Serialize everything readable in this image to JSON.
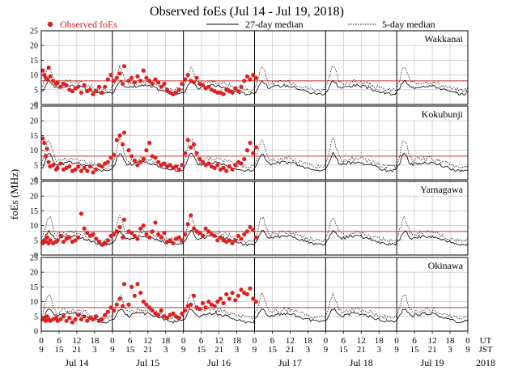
{
  "chart_data": {
    "type": "scatter",
    "title": "Observed foEs (Jul 14 - Jul 19, 2018)",
    "ylabel": "foEs (MHz)",
    "ylim": [
      0,
      25
    ],
    "yticks": [
      0,
      5,
      10,
      15,
      20,
      25
    ],
    "xlim_hours": [
      0,
      144
    ],
    "reference_line_mhz": 8,
    "legend": {
      "observed": "Observed foEs",
      "median27": "27-day median",
      "median5": "5-day median",
      "position": "top"
    },
    "ut_ticks": [
      "0",
      "6",
      "12",
      "18",
      "0",
      "6",
      "12",
      "18",
      "0",
      "6",
      "12",
      "18",
      "0",
      "6",
      "12",
      "18",
      "0",
      "6",
      "12",
      "18",
      "0",
      "6",
      "12",
      "18",
      "0"
    ],
    "jst_ticks": [
      "9",
      "15",
      "21",
      "3",
      "9",
      "15",
      "21",
      "3",
      "9",
      "15",
      "21",
      "3",
      "9",
      "15",
      "21",
      "3",
      "9",
      "15",
      "21",
      "3",
      "9",
      "15",
      "21",
      "3",
      "9"
    ],
    "ut_label": "UT",
    "jst_label": "JST",
    "days": [
      "Jul 14",
      "Jul 15",
      "Jul 16",
      "Jul 17",
      "Jul 18",
      "Jul 19"
    ],
    "year": "2018",
    "colors": {
      "observed": "#e02020",
      "reference": "#c83232",
      "median": "#000000",
      "grid": "#bbbbbb"
    },
    "stations": [
      {
        "name": "Wakkanai",
        "observed_until_hour": 73,
        "observed": [
          [
            0.5,
            11.5
          ],
          [
            1,
            10
          ],
          [
            1.5,
            9
          ],
          [
            2,
            8.5
          ],
          [
            2.5,
            12.5
          ],
          [
            3,
            9.5
          ],
          [
            4,
            8
          ],
          [
            5,
            7
          ],
          [
            5.5,
            7.5
          ],
          [
            6.5,
            6
          ],
          [
            7.5,
            7
          ],
          [
            8.5,
            6.5
          ],
          [
            9.5,
            5
          ],
          [
            10.5,
            4.5
          ],
          [
            11.5,
            5.5
          ],
          [
            12.5,
            6
          ],
          [
            13.5,
            4
          ],
          [
            14.5,
            6.5
          ],
          [
            15.5,
            4.5
          ],
          [
            16.5,
            5
          ],
          [
            17.5,
            3.5
          ],
          [
            18.5,
            4.5
          ],
          [
            19.5,
            6
          ],
          [
            20.5,
            4
          ],
          [
            21.5,
            6
          ],
          [
            22.5,
            8.5
          ],
          [
            23.5,
            10
          ],
          [
            24.5,
            8
          ],
          [
            25.5,
            9
          ],
          [
            26.5,
            10.5
          ],
          [
            27.5,
            7
          ],
          [
            28,
            13
          ],
          [
            29.5,
            8
          ],
          [
            30.5,
            9
          ],
          [
            31.5,
            7.5
          ],
          [
            32.5,
            9.5
          ],
          [
            33.5,
            8
          ],
          [
            34.5,
            11.5
          ],
          [
            35.5,
            9
          ],
          [
            36.5,
            8
          ],
          [
            37.5,
            7
          ],
          [
            38.5,
            8.5
          ],
          [
            39.5,
            7.5
          ],
          [
            40.5,
            6
          ],
          [
            41.5,
            7
          ],
          [
            42.5,
            5
          ],
          [
            43.5,
            4
          ],
          [
            44.5,
            3.5
          ],
          [
            45.5,
            4
          ],
          [
            46.5,
            5
          ],
          [
            47.5,
            7
          ],
          [
            48.5,
            8.5
          ],
          [
            49.5,
            10
          ],
          [
            50.5,
            8
          ],
          [
            51.5,
            7.5
          ],
          [
            52.5,
            9
          ],
          [
            53.5,
            7
          ],
          [
            54.5,
            6.5
          ],
          [
            55.5,
            5.5
          ],
          [
            56.5,
            6
          ],
          [
            57.5,
            5
          ],
          [
            58.5,
            4.5
          ],
          [
            59.5,
            4
          ],
          [
            60.5,
            4
          ],
          [
            61.5,
            3.5
          ],
          [
            62.5,
            5
          ],
          [
            63.5,
            4.5
          ],
          [
            64.5,
            4
          ],
          [
            65.5,
            5.5
          ],
          [
            66.5,
            4.5
          ],
          [
            67.5,
            6
          ],
          [
            68.5,
            8
          ],
          [
            69.5,
            9.5
          ],
          [
            70.5,
            8.5
          ],
          [
            71.5,
            10
          ],
          [
            72.5,
            9
          ]
        ]
      },
      {
        "name": "Kokubunji",
        "observed_until_hour": 73,
        "observed": [
          [
            0.5,
            14
          ],
          [
            1,
            12.5
          ],
          [
            1.5,
            8
          ],
          [
            2,
            10.5
          ],
          [
            2.5,
            6
          ],
          [
            3,
            4.5
          ],
          [
            4,
            5
          ],
          [
            5,
            3.5
          ],
          [
            5.5,
            4
          ],
          [
            6.5,
            5.5
          ],
          [
            7.5,
            3.5
          ],
          [
            8.5,
            4
          ],
          [
            9.5,
            4.5
          ],
          [
            10.5,
            3
          ],
          [
            11.5,
            3.5
          ],
          [
            12.5,
            4.5
          ],
          [
            13.5,
            3
          ],
          [
            14.5,
            4
          ],
          [
            15.5,
            3
          ],
          [
            16.5,
            4.5
          ],
          [
            17.5,
            2.5
          ],
          [
            18.5,
            3.5
          ],
          [
            19.5,
            5
          ],
          [
            20.5,
            4.5
          ],
          [
            21.5,
            5.5
          ],
          [
            22.5,
            6
          ],
          [
            23.5,
            7.5
          ],
          [
            24.5,
            8.5
          ],
          [
            25.5,
            13.5
          ],
          [
            26.5,
            15
          ],
          [
            27.5,
            12
          ],
          [
            28,
            16
          ],
          [
            29.5,
            10
          ],
          [
            30.5,
            8
          ],
          [
            31.5,
            6.5
          ],
          [
            32.5,
            5
          ],
          [
            33.5,
            6
          ],
          [
            34.5,
            7
          ],
          [
            35.5,
            10
          ],
          [
            36.5,
            12.5
          ],
          [
            37.5,
            8
          ],
          [
            38.5,
            7.5
          ],
          [
            39.5,
            6
          ],
          [
            40.5,
            5
          ],
          [
            41.5,
            5.5
          ],
          [
            42.5,
            4.5
          ],
          [
            43.5,
            5
          ],
          [
            44.5,
            4
          ],
          [
            45.5,
            4.5
          ],
          [
            46.5,
            3.5
          ],
          [
            47.5,
            5
          ],
          [
            48.5,
            9
          ],
          [
            49.5,
            13.5
          ],
          [
            50.5,
            11
          ],
          [
            51.5,
            12
          ],
          [
            52.5,
            9
          ],
          [
            53.5,
            7
          ],
          [
            54.5,
            6
          ],
          [
            55.5,
            5
          ],
          [
            56.5,
            5.5
          ],
          [
            57.5,
            4.5
          ],
          [
            58.5,
            4
          ],
          [
            59.5,
            5
          ],
          [
            60.5,
            3.5
          ],
          [
            61.5,
            4
          ],
          [
            62.5,
            3
          ],
          [
            63.5,
            4.5
          ],
          [
            64.5,
            3.5
          ],
          [
            65.5,
            5
          ],
          [
            66.5,
            6
          ],
          [
            67.5,
            5.5
          ],
          [
            68.5,
            7
          ],
          [
            69.5,
            10
          ],
          [
            70.5,
            12.5
          ],
          [
            71.5,
            9
          ],
          [
            72.5,
            11
          ]
        ]
      },
      {
        "name": "Yamagawa",
        "observed_until_hour": 73,
        "observed": [
          [
            0.5,
            4
          ],
          [
            1,
            5
          ],
          [
            1.5,
            4.5
          ],
          [
            2,
            6
          ],
          [
            2.5,
            4
          ],
          [
            3,
            5
          ],
          [
            4,
            4
          ],
          [
            5,
            4.5
          ],
          [
            5.5,
            5
          ],
          [
            6.5,
            6.5
          ],
          [
            7.5,
            4.5
          ],
          [
            8.5,
            5.5
          ],
          [
            9.5,
            6
          ],
          [
            10.5,
            4.5
          ],
          [
            11.5,
            5
          ],
          [
            12.5,
            6
          ],
          [
            13.5,
            14
          ],
          [
            14.5,
            9
          ],
          [
            15.5,
            7.5
          ],
          [
            16.5,
            6.5
          ],
          [
            17.5,
            7
          ],
          [
            18.5,
            5.5
          ],
          [
            19.5,
            4.5
          ],
          [
            20.5,
            3.5
          ],
          [
            21.5,
            4
          ],
          [
            22.5,
            5
          ],
          [
            23.5,
            6.5
          ],
          [
            24.5,
            7
          ],
          [
            25.5,
            8
          ],
          [
            26.5,
            9.5
          ],
          [
            27.5,
            6
          ],
          [
            28,
            12
          ],
          [
            29.5,
            8
          ],
          [
            30.5,
            7.5
          ],
          [
            31.5,
            6.5
          ],
          [
            32.5,
            5.5
          ],
          [
            33.5,
            9
          ],
          [
            34.5,
            10
          ],
          [
            35.5,
            7
          ],
          [
            36.5,
            6
          ],
          [
            37.5,
            8
          ],
          [
            38.5,
            11
          ],
          [
            39.5,
            7
          ],
          [
            40.5,
            6
          ],
          [
            41.5,
            7.5
          ],
          [
            42.5,
            4.5
          ],
          [
            43.5,
            5
          ],
          [
            44.5,
            4
          ],
          [
            45.5,
            5.5
          ],
          [
            46.5,
            6
          ],
          [
            47.5,
            5
          ],
          [
            48.5,
            7
          ],
          [
            49.5,
            10.5
          ],
          [
            50.5,
            13.5
          ],
          [
            51.5,
            9
          ],
          [
            52.5,
            8
          ],
          [
            53.5,
            7.5
          ],
          [
            54.5,
            6.5
          ],
          [
            55.5,
            9
          ],
          [
            56.5,
            8
          ],
          [
            57.5,
            7
          ],
          [
            58.5,
            6.5
          ],
          [
            59.5,
            5
          ],
          [
            60.5,
            6
          ],
          [
            61.5,
            5
          ],
          [
            62.5,
            4.5
          ],
          [
            63.5,
            5
          ],
          [
            64.5,
            4
          ],
          [
            65.5,
            5
          ],
          [
            66.5,
            6.5
          ],
          [
            67.5,
            5.5
          ],
          [
            68.5,
            7
          ],
          [
            69.5,
            8
          ],
          [
            70.5,
            9.5
          ],
          [
            71.5,
            8.5
          ],
          [
            72.5,
            6
          ]
        ]
      },
      {
        "name": "Okinawa",
        "observed_until_hour": 73,
        "observed": [
          [
            0.5,
            4
          ],
          [
            1,
            4.5
          ],
          [
            1.5,
            3.5
          ],
          [
            2,
            5
          ],
          [
            2.5,
            4
          ],
          [
            3,
            3.5
          ],
          [
            4,
            4
          ],
          [
            5,
            4.5
          ],
          [
            5.5,
            3.5
          ],
          [
            6.5,
            4
          ],
          [
            7.5,
            5
          ],
          [
            8.5,
            3.5
          ],
          [
            9.5,
            4.5
          ],
          [
            10.5,
            3
          ],
          [
            11.5,
            4
          ],
          [
            12.5,
            5.5
          ],
          [
            13.5,
            4
          ],
          [
            14.5,
            5
          ],
          [
            15.5,
            3.5
          ],
          [
            16.5,
            4.5
          ],
          [
            17.5,
            4
          ],
          [
            18.5,
            5
          ],
          [
            19.5,
            3.5
          ],
          [
            20.5,
            4
          ],
          [
            21.5,
            5.5
          ],
          [
            22.5,
            6.5
          ],
          [
            23.5,
            8
          ],
          [
            24.5,
            7
          ],
          [
            25.5,
            9
          ],
          [
            26.5,
            11
          ],
          [
            27.5,
            8.5
          ],
          [
            28,
            16
          ],
          [
            29.5,
            9
          ],
          [
            30.5,
            15
          ],
          [
            31.5,
            12
          ],
          [
            32.5,
            16
          ],
          [
            33.5,
            13
          ],
          [
            34.5,
            10
          ],
          [
            35.5,
            9
          ],
          [
            36.5,
            8
          ],
          [
            37.5,
            7
          ],
          [
            38.5,
            6
          ],
          [
            39.5,
            5.5
          ],
          [
            40.5,
            7
          ],
          [
            41.5,
            5
          ],
          [
            42.5,
            4.5
          ],
          [
            43.5,
            5.5
          ],
          [
            44.5,
            6
          ],
          [
            45.5,
            5
          ],
          [
            46.5,
            4.5
          ],
          [
            47.5,
            6
          ],
          [
            48.5,
            7
          ],
          [
            49.5,
            8.5
          ],
          [
            50.5,
            9
          ],
          [
            51.5,
            12
          ],
          [
            52.5,
            8
          ],
          [
            53.5,
            7.5
          ],
          [
            54.5,
            9.5
          ],
          [
            55.5,
            8
          ],
          [
            56.5,
            10
          ],
          [
            57.5,
            9
          ],
          [
            58.5,
            8.5
          ],
          [
            59.5,
            10
          ],
          [
            60.5,
            11
          ],
          [
            61.5,
            9.5
          ],
          [
            62.5,
            12.5
          ],
          [
            63.5,
            11
          ],
          [
            64.5,
            13
          ],
          [
            65.5,
            10.5
          ],
          [
            66.5,
            12
          ],
          [
            67.5,
            14
          ],
          [
            68.5,
            13
          ],
          [
            69.5,
            12.5
          ],
          [
            70.5,
            14.5
          ],
          [
            71.5,
            11
          ],
          [
            72.5,
            10
          ]
        ]
      }
    ]
  }
}
